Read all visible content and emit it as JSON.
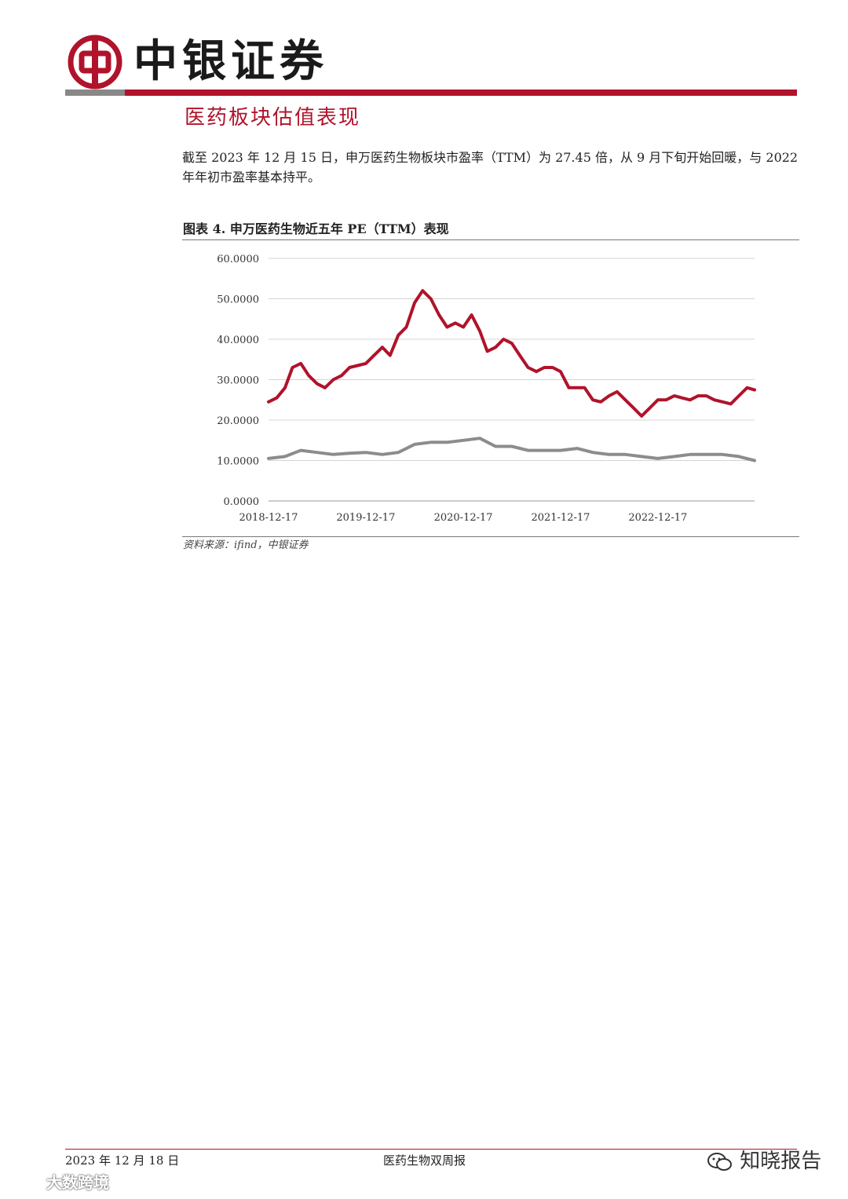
{
  "header": {
    "brand": "中银证券",
    "colors": {
      "red": "#b0132b",
      "grey": "#888888"
    }
  },
  "section": {
    "title": "医药板块估值表现",
    "paragraph": "截至 2023 年 12 月 15 日，申万医药生物板块市盈率（TTM）为 27.45 倍，从 9 月下旬开始回暖，与 2022 年年初市盈率基本持平。"
  },
  "figure": {
    "title": "图表 4. 申万医药生物近五年 PE（TTM）表现",
    "source": "资料来源：ifind，中银证券"
  },
  "chart_data": {
    "type": "line",
    "ylim": [
      0,
      60
    ],
    "yticks": [
      "60.0000",
      "50.0000",
      "40.0000",
      "30.0000",
      "20.0000",
      "10.0000",
      "0.0000"
    ],
    "xticks": [
      "2018-12-17",
      "2019-12-17",
      "2020-12-17",
      "2021-12-17",
      "2022-12-17"
    ],
    "grid": true,
    "series": [
      {
        "color": "#b0132b",
        "x": [
          "2018-12-17",
          "2019-01-17",
          "2019-02-17",
          "2019-03-17",
          "2019-04-17",
          "2019-05-17",
          "2019-06-17",
          "2019-07-17",
          "2019-08-17",
          "2019-09-17",
          "2019-10-17",
          "2019-11-17",
          "2019-12-17",
          "2020-01-17",
          "2020-02-17",
          "2020-03-17",
          "2020-04-17",
          "2020-05-17",
          "2020-06-17",
          "2020-07-17",
          "2020-08-17",
          "2020-09-17",
          "2020-10-17",
          "2020-11-17",
          "2020-12-17",
          "2021-01-17",
          "2021-02-17",
          "2021-03-17",
          "2021-04-17",
          "2021-05-17",
          "2021-06-17",
          "2021-07-17",
          "2021-08-17",
          "2021-09-17",
          "2021-10-17",
          "2021-11-17",
          "2021-12-17",
          "2022-01-17",
          "2022-02-17",
          "2022-03-17",
          "2022-04-17",
          "2022-05-17",
          "2022-06-17",
          "2022-07-17",
          "2022-08-17",
          "2022-09-17",
          "2022-10-17",
          "2022-11-17",
          "2022-12-17",
          "2023-01-17",
          "2023-02-17",
          "2023-03-17",
          "2023-04-17",
          "2023-05-17",
          "2023-06-17",
          "2023-07-17",
          "2023-08-17",
          "2023-09-17",
          "2023-10-17",
          "2023-11-17",
          "2023-12-15"
        ],
        "y": [
          24.5,
          25.5,
          28,
          33,
          34,
          31,
          29,
          28,
          30,
          31,
          33,
          33.5,
          34,
          36,
          38,
          36,
          41,
          43,
          49,
          52,
          50,
          46,
          43,
          44,
          43,
          46,
          42,
          37,
          38,
          40,
          39,
          36,
          33,
          32,
          33,
          33,
          32,
          28,
          28,
          28,
          25,
          24.5,
          26,
          27,
          25,
          23,
          21,
          23,
          25,
          25,
          26,
          25.5,
          25,
          26,
          26,
          25,
          24.5,
          24,
          26,
          28,
          27.45
        ]
      },
      {
        "color": "#8c8c8c",
        "x": [
          "2018-12-17",
          "2019-02-17",
          "2019-04-17",
          "2019-06-17",
          "2019-08-17",
          "2019-10-17",
          "2019-12-17",
          "2020-02-17",
          "2020-04-17",
          "2020-06-17",
          "2020-08-17",
          "2020-10-17",
          "2020-12-17",
          "2021-02-17",
          "2021-04-17",
          "2021-06-17",
          "2021-08-17",
          "2021-10-17",
          "2021-12-17",
          "2022-02-17",
          "2022-04-17",
          "2022-06-17",
          "2022-08-17",
          "2022-10-17",
          "2022-12-17",
          "2023-02-17",
          "2023-04-17",
          "2023-06-17",
          "2023-08-17",
          "2023-10-17",
          "2023-12-15"
        ],
        "y": [
          10.5,
          11,
          12.5,
          12,
          11.5,
          11.8,
          12,
          11.5,
          12,
          14,
          14.5,
          14.5,
          15,
          15.5,
          13.5,
          13.5,
          12.5,
          12.5,
          12.5,
          13,
          12,
          11.5,
          11.5,
          11,
          10.5,
          11,
          11.5,
          11.5,
          11.5,
          11,
          10
        ]
      }
    ]
  },
  "footer": {
    "date": "2023 年 12 月 18 日",
    "title": "医药生物双周报"
  },
  "watermarks": {
    "right": "知晓报告",
    "left": "大数跨境"
  }
}
